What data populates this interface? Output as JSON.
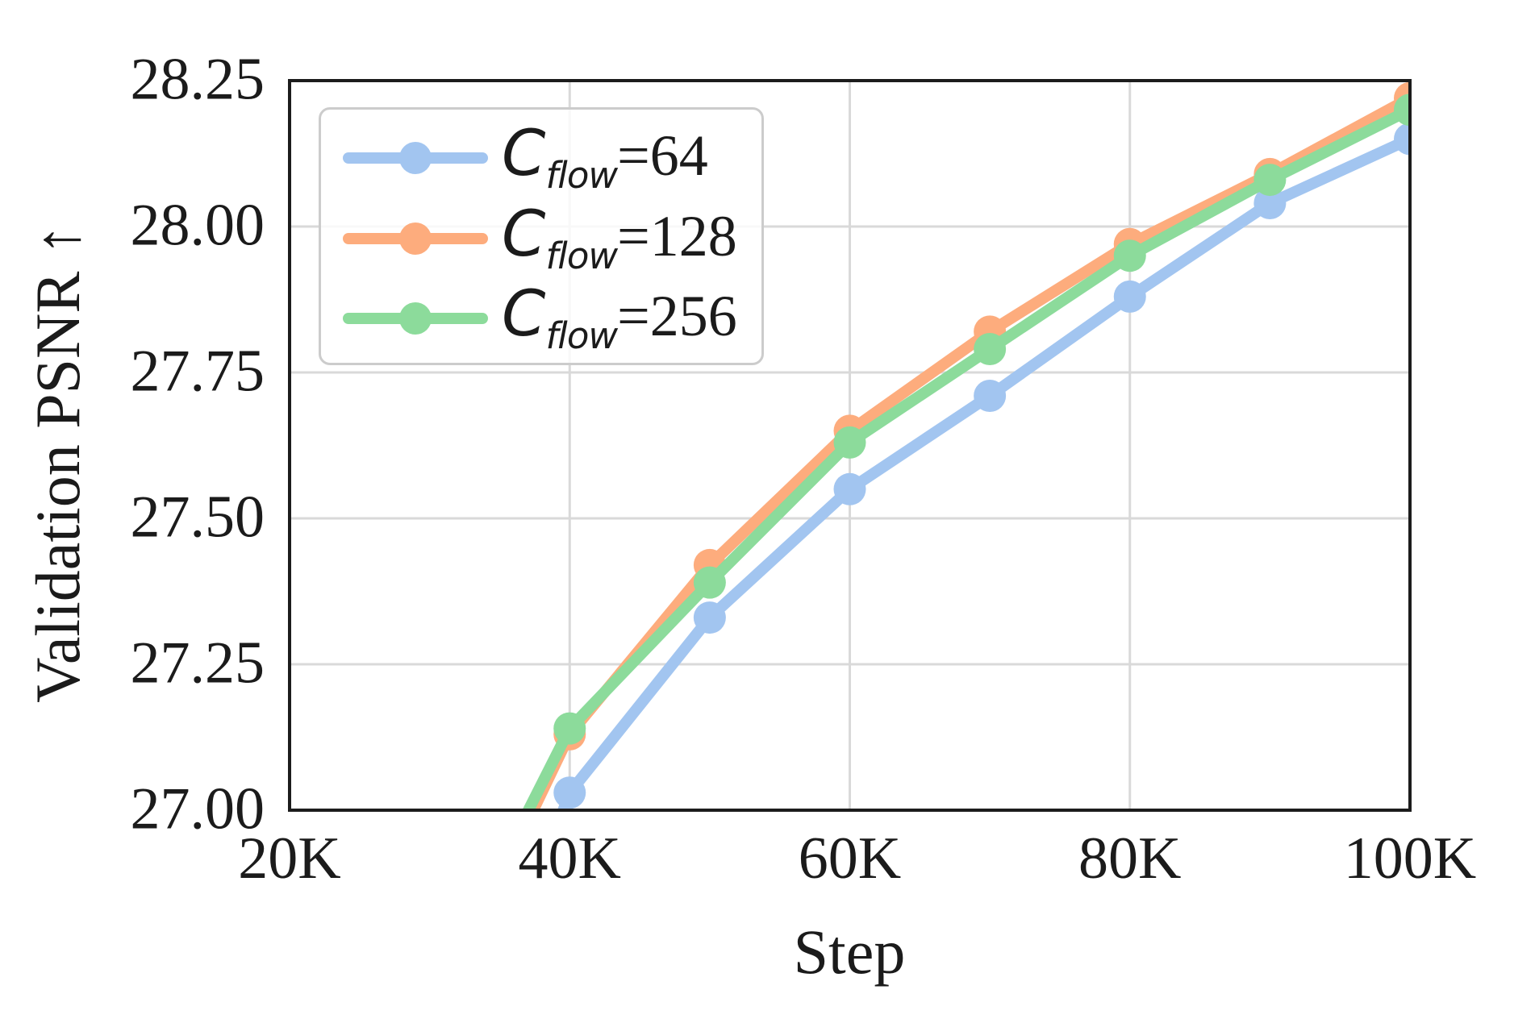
{
  "chart_data": {
    "type": "line",
    "xlabel": "Step",
    "ylabel": "Validation PSNR ↑",
    "x_unit": "K",
    "xlim_k": [
      20,
      100
    ],
    "ylim": [
      27.0,
      28.25
    ],
    "grid": true,
    "legend_position": "upper left",
    "xticks": {
      "values_k": [
        20,
        40,
        60,
        80,
        100
      ],
      "labels": [
        "20K",
        "40K",
        "60K",
        "80K",
        "100K"
      ]
    },
    "yticks": {
      "values": [
        27.0,
        27.25,
        27.5,
        27.75,
        28.0,
        28.25
      ],
      "labels": [
        "27.00",
        "27.25",
        "27.50",
        "27.75",
        "28.00",
        "28.25"
      ]
    },
    "series": [
      {
        "label": "C_flow=64",
        "label_main": "C",
        "label_sub": "flow",
        "label_suffix": "=64",
        "color": "#A2C5F0",
        "x_k": [
          40,
          50,
          60,
          70,
          80,
          90,
          100
        ],
        "y": [
          27.03,
          27.33,
          27.55,
          27.71,
          27.88,
          28.04,
          28.15
        ],
        "lead_in": {
          "x_k": 38,
          "y": 26.9
        }
      },
      {
        "label": "C_flow=128",
        "label_main": "C",
        "label_sub": "flow",
        "label_suffix": "=128",
        "color": "#FDAC7D",
        "x_k": [
          40,
          50,
          60,
          70,
          80,
          90,
          100
        ],
        "y": [
          27.13,
          27.42,
          27.65,
          27.82,
          27.97,
          28.09,
          28.22
        ],
        "lead_in": {
          "x_k": 36,
          "y": 26.93
        }
      },
      {
        "label": "C_flow=256",
        "label_main": "C",
        "label_sub": "flow",
        "label_suffix": "=256",
        "color": "#8CDB9B",
        "x_k": [
          40,
          50,
          60,
          70,
          80,
          90,
          100
        ],
        "y": [
          27.14,
          27.39,
          27.63,
          27.79,
          27.95,
          28.08,
          28.2
        ],
        "lead_in": {
          "x_k": 36,
          "y": 26.95
        }
      }
    ],
    "style": {
      "grid_color": "#D9D9D9",
      "spine_color": "#1C1C1C",
      "legend_border_color": "#CCCCCC",
      "text_color": "#1B1B1B",
      "marker_radius": 20,
      "line_width": 14
    }
  }
}
